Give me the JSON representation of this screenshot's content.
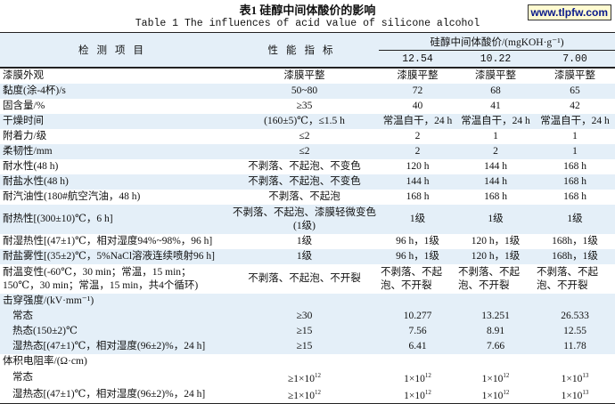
{
  "title": "表1  硅醇中间体酸价的影响",
  "subtitle": "Table 1   The influences of acid value of silicone alcohol",
  "watermark": "www.tlpfw.com",
  "header": {
    "col_item": "检测项目",
    "col_spec": "性能指标",
    "group": "硅醇中间体酸价/(mgKOH·g⁻¹)",
    "values": [
      "12.54",
      "10.22",
      "7.00"
    ]
  },
  "rows": [
    {
      "item": "漆膜外观",
      "spec": "漆膜平整",
      "vals": [
        "漆膜平整",
        "漆膜平整",
        "漆膜平整"
      ],
      "band": false
    },
    {
      "item": "黏度(涂-4杯)/s",
      "spec": "50~80",
      "vals": [
        "72",
        "68",
        "65"
      ],
      "band": true
    },
    {
      "item": "固含量/%",
      "spec": "≥35",
      "vals": [
        "40",
        "41",
        "42"
      ],
      "band": false
    },
    {
      "item": "干燥时间",
      "spec": "(160±5)℃，≤1.5 h",
      "vals": [
        "常温自干，24 h",
        "常温自干，24 h",
        "常温自干，24 h"
      ],
      "band": true
    },
    {
      "item": "附着力/级",
      "spec": "≤2",
      "vals": [
        "2",
        "1",
        "1"
      ],
      "band": false
    },
    {
      "item": "柔韧性/mm",
      "spec": "≤2",
      "vals": [
        "2",
        "2",
        "1"
      ],
      "band": true
    },
    {
      "item": "耐水性(48 h)",
      "spec": "不剥落、不起泡、不变色",
      "vals": [
        "120 h",
        "144 h",
        "168 h"
      ],
      "band": false
    },
    {
      "item": "耐盐水性(48 h)",
      "spec": "不剥落、不起泡、不变色",
      "vals": [
        "144 h",
        "144 h",
        "168 h"
      ],
      "band": true
    },
    {
      "item": "耐汽油性(180#航空汽油，48 h)",
      "spec": "不剥落、不起泡",
      "vals": [
        "168 h",
        "168 h",
        "168 h"
      ],
      "band": false
    },
    {
      "item": "耐热性[(300±10)℃，6 h]",
      "spec": "不剥落、不起泡、漆膜轻微变色(1级)",
      "vals": [
        "1级",
        "1级",
        "1级"
      ],
      "band": true,
      "tall": true
    },
    {
      "item": "耐湿热性[(47±1)℃，相对湿度94%~98%，96 h]",
      "spec": "1级",
      "vals": [
        "96 h，1级",
        "120 h，1级",
        "168h，1级"
      ],
      "band": false
    },
    {
      "item": "耐盐雾性[(35±2)℃，5%NaCl溶液连续喷射96 h]",
      "spec": "1级",
      "vals": [
        "96 h，1级",
        "120 h，1级",
        "168h，1级"
      ],
      "band": true
    },
    {
      "item": "耐温变性(-60℃，30 min；常温，15 min；150℃，30 min；常温，15 min，共4个循环)",
      "spec": "不剥落、不起泡、不开裂",
      "vals": [
        "不剥落、不起泡、不开裂",
        "不剥落、不起泡、不开裂",
        "不剥落、不起泡、不开裂"
      ],
      "band": false,
      "tall": true
    },
    {
      "item": "击穿强度/(kV·mm⁻¹)",
      "spec": "",
      "vals": [
        "",
        "",
        ""
      ],
      "band": true
    },
    {
      "item": "常态",
      "spec": "≥30",
      "vals": [
        "10.277",
        "13.251",
        "26.533"
      ],
      "band": true,
      "indent": true
    },
    {
      "item": "热态(150±2)℃",
      "spec": "≥15",
      "vals": [
        "7.56",
        "8.91",
        "12.55"
      ],
      "band": true,
      "indent": true
    },
    {
      "item": "湿热态[(47±1)℃，相对湿度(96±2)%，24 h]",
      "spec": "≥15",
      "vals": [
        "6.41",
        "7.66",
        "11.78"
      ],
      "band": true,
      "indent": true
    },
    {
      "item": "体积电阻率/(Ω·cm)",
      "spec": "",
      "vals": [
        "",
        "",
        ""
      ],
      "band": false
    },
    {
      "item": "常态",
      "spec": {
        "text": "≥1×10",
        "sup": "12"
      },
      "vals": [
        {
          "text": "1×10",
          "sup": "12"
        },
        {
          "text": "1×10",
          "sup": "12"
        },
        {
          "text": "1×10",
          "sup": "13"
        }
      ],
      "band": false,
      "indent": true
    },
    {
      "item": "湿热态[(47±1)℃，相对湿度(96±2)%，24 h]",
      "spec": {
        "text": "≥1×10",
        "sup": "12"
      },
      "vals": [
        {
          "text": "1×10",
          "sup": "12"
        },
        {
          "text": "1×10",
          "sup": "12"
        },
        {
          "text": "1×10",
          "sup": "13"
        }
      ],
      "band": false,
      "indent": true
    }
  ],
  "colors": {
    "band": "#e4eff8",
    "rule": "#222222",
    "watermark_text": "#0a1a8c",
    "watermark_bg": "#fffbd0"
  }
}
